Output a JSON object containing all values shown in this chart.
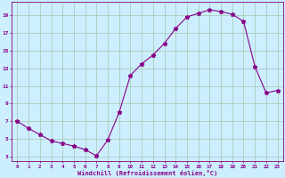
{
  "x": [
    0,
    1,
    2,
    3,
    4,
    5,
    6,
    7,
    8,
    9,
    10,
    11,
    12,
    13,
    14,
    15,
    16,
    17,
    18,
    19,
    20,
    21,
    22,
    23
  ],
  "y": [
    7.0,
    6.2,
    5.5,
    4.8,
    4.5,
    4.2,
    3.8,
    3.1,
    4.9,
    8.0,
    12.2,
    13.5,
    14.5,
    15.8,
    17.5,
    18.8,
    19.2,
    19.6,
    19.4,
    19.1,
    18.3,
    13.2,
    10.2,
    10.5
  ],
  "line_color": "#880088",
  "marker": "*",
  "marker_size": 3.5,
  "bg_color": "#cceeff",
  "grid_color": "#aaccbb",
  "xlabel": "Windchill (Refroidissement éolien,°C)",
  "xlabel_color": "#880088",
  "tick_color": "#880088",
  "ylabel_ticks": [
    3,
    5,
    7,
    9,
    11,
    13,
    15,
    17,
    19
  ],
  "xlim": [
    -0.5,
    23.5
  ],
  "ylim": [
    2.5,
    20.5
  ]
}
